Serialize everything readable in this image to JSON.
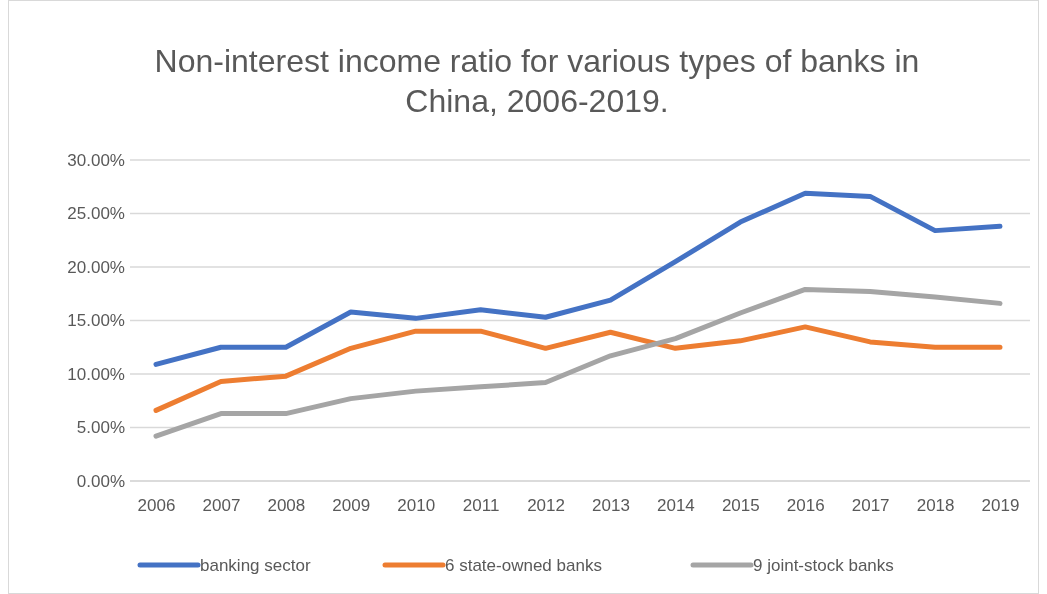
{
  "chart_data": {
    "type": "line",
    "title": "Non-interest income ratio for various types of banks in China, 2006-2019.",
    "categories": [
      "2006",
      "2007",
      "2008",
      "2009",
      "2010",
      "2011",
      "2012",
      "2013",
      "2014",
      "2015",
      "2016",
      "2017",
      "2018",
      "2019"
    ],
    "series": [
      {
        "name": "banking sector",
        "color": "#4472c4",
        "values": [
          10.9,
          12.5,
          12.5,
          15.8,
          15.2,
          16.0,
          15.3,
          16.9,
          20.5,
          24.2,
          26.9,
          26.6,
          23.4,
          23.8
        ]
      },
      {
        "name": "6 state-owned banks",
        "color": "#ed7d31",
        "values": [
          6.6,
          9.3,
          9.8,
          12.4,
          14.0,
          14.0,
          12.4,
          13.9,
          12.4,
          13.1,
          14.4,
          13.0,
          12.5,
          12.5
        ]
      },
      {
        "name": "9 joint-stock banks",
        "color": "#a5a5a5",
        "values": [
          4.2,
          6.3,
          6.3,
          7.7,
          8.4,
          8.8,
          9.2,
          11.7,
          13.3,
          15.7,
          17.9,
          17.7,
          17.2,
          16.6
        ]
      }
    ],
    "ylim": [
      0,
      30
    ],
    "yticks": [
      {
        "value": 0,
        "label": "0.00%"
      },
      {
        "value": 5,
        "label": "5.00%"
      },
      {
        "value": 10,
        "label": "10.00%"
      },
      {
        "value": 15,
        "label": "15.00%"
      },
      {
        "value": 20,
        "label": "20.00%"
      },
      {
        "value": 25,
        "label": "25.00%"
      },
      {
        "value": 30,
        "label": "30.00%"
      }
    ],
    "grid": "y",
    "legend": "bottom",
    "marker": "none",
    "line_style": "solid"
  }
}
